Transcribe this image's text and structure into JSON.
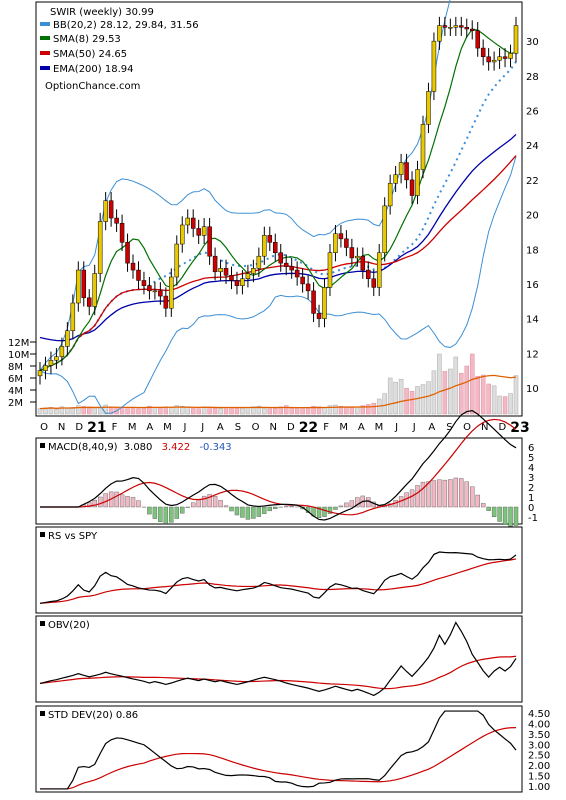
{
  "chart_data": {
    "type": "stock-chart",
    "title": "SWIR (weekly) 30.99",
    "watermark": "OptionChance.com",
    "x_axis": {
      "ticks": [
        "O",
        "N",
        "D",
        "21",
        "F",
        "M",
        "A",
        "M",
        "J",
        "J",
        "A",
        "S",
        "O",
        "N",
        "D",
        "22",
        "F",
        "M",
        "A",
        "M",
        "J",
        "J",
        "A",
        "S",
        "O",
        "N",
        "D",
        "23"
      ],
      "year_ticks": [
        "21",
        "22",
        "23"
      ]
    },
    "main_panel": {
      "type": "candlestick",
      "y_axis": {
        "ticks": [
          10,
          12,
          14,
          16,
          18,
          20,
          22,
          24,
          26,
          28,
          30
        ],
        "range": [
          8.5,
          32.2
        ]
      },
      "legend": [
        {
          "label": "SWIR (weekly) 30.99",
          "color": "#ffffff"
        },
        {
          "label": "BB(20,2) 28.12, 29.84, 31.56",
          "color": "#3c8fd6"
        },
        {
          "label": "SMA(8) 29.53",
          "color": "#007000"
        },
        {
          "label": "SMA(50) 24.65",
          "color": "#cc0000"
        },
        {
          "label": "EMA(200) 18.94",
          "color": "#0000aa"
        }
      ],
      "closes": [
        11.0,
        11.3,
        11.6,
        11.8,
        12.4,
        13.3,
        14.9,
        16.8,
        15.2,
        14.7,
        16.6,
        19.6,
        20.8,
        19.8,
        19.5,
        18.4,
        17.2,
        16.8,
        16.2,
        15.9,
        15.6,
        15.6,
        15.3,
        14.6,
        16.4,
        18.3,
        19.4,
        19.8,
        19.2,
        18.8,
        19.3,
        17.6,
        16.7,
        16.9,
        16.5,
        16.2,
        15.9,
        16.3,
        16.6,
        16.9,
        17.6,
        18.8,
        18.4,
        17.8,
        17.2,
        17.0,
        16.8,
        16.4,
        16.0,
        15.6,
        14.3,
        14.0,
        15.8,
        17.8,
        18.9,
        18.6,
        18.1,
        17.5,
        17.6,
        16.8,
        16.3,
        15.8,
        17.8,
        20.5,
        21.8,
        22.3,
        23.0,
        22.0,
        21.1,
        22.6,
        25.2,
        27.1,
        30.0,
        30.9,
        30.8,
        30.8,
        30.9,
        30.8,
        30.7,
        30.6,
        29.6,
        29.1,
        28.8,
        28.9,
        29.1,
        29.0,
        29.3,
        30.9
      ],
      "volume_m": [
        0.9,
        1.0,
        1.1,
        0.8,
        1.2,
        1.0,
        1.1,
        1.4,
        1.3,
        1.2,
        1.0,
        1.1,
        1.5,
        1.2,
        1.0,
        0.9,
        1.1,
        1.0,
        0.9,
        1.0,
        1.3,
        1.1,
        1.0,
        1.2,
        1.1,
        1.4,
        1.3,
        1.1,
        1.0,
        0.9,
        1.2,
        1.1,
        1.0,
        0.9,
        1.1,
        1.0,
        0.9,
        1.0,
        1.1,
        1.2,
        1.3,
        1.0,
        0.9,
        1.0,
        1.2,
        1.4,
        1.1,
        1.0,
        0.9,
        1.0,
        1.3,
        1.2,
        1.1,
        1.4,
        1.5,
        1.3,
        1.2,
        1.1,
        1.2,
        1.4,
        1.6,
        1.8,
        2.5,
        3.4,
        6.0,
        5.3,
        5.8,
        4.3,
        3.8,
        4.6,
        4.9,
        5.4,
        7.2,
        10.0,
        7.1,
        7.5,
        9.5,
        6.8,
        8.0,
        10.0,
        6.3,
        6.5,
        5.0,
        4.7,
        3.0,
        2.9,
        3.4,
        6.4
      ],
      "volume_axis": {
        "ticks": [
          "2M",
          "4M",
          "6M",
          "8M",
          "10M",
          "12M"
        ],
        "max_m": 14
      },
      "volume_ma_color": "#e06000",
      "up_color": "#e8c800",
      "down_color": "#cc0000"
    },
    "macd_panel": {
      "label": "MACD(8,40,9)",
      "values": [
        "3.080",
        "3.422",
        "-0.343"
      ],
      "colors": [
        "#000000",
        "#cc0000",
        "#2255bb"
      ],
      "y_axis": {
        "ticks": [
          -1,
          0,
          1,
          2,
          3,
          4,
          5,
          6
        ],
        "range": [
          -1.5,
          6.6
        ]
      }
    },
    "rs_panel": {
      "label": "RS vs SPY"
    },
    "obv_panel": {
      "label": "OBV(20)"
    },
    "std_panel": {
      "label": "STD DEV(20) 0.86",
      "y_axis": {
        "ticks": [
          "1.00",
          "1.50",
          "2.00",
          "2.50",
          "3.00",
          "3.50",
          "4.00",
          "4.50"
        ],
        "range": [
          0.8,
          4.7
        ]
      }
    }
  }
}
